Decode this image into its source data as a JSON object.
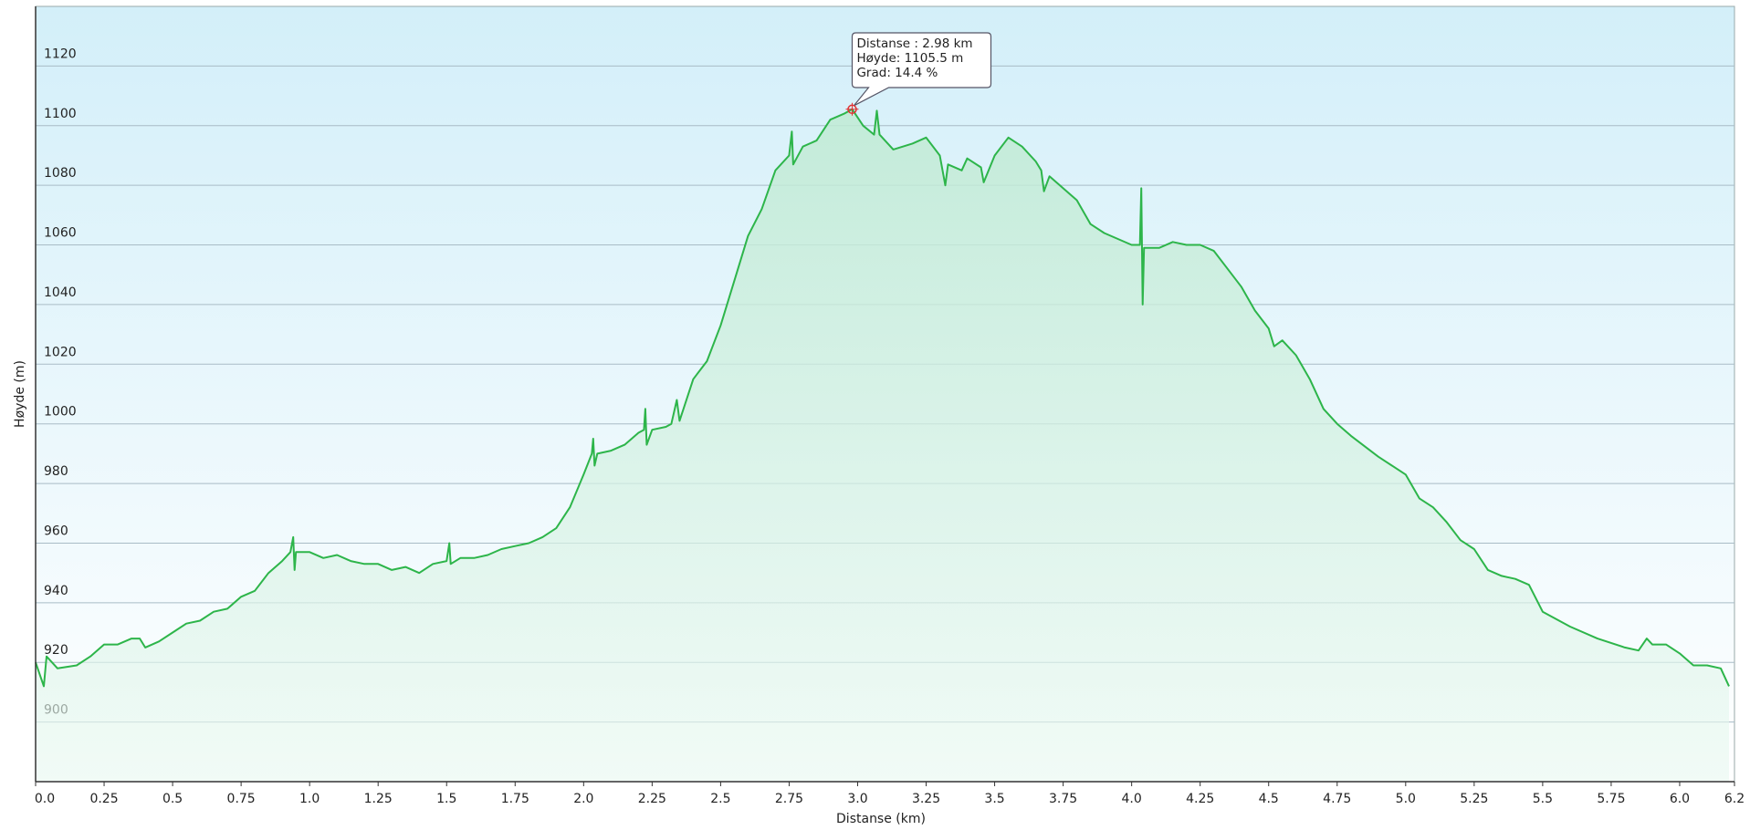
{
  "chart_data": {
    "type": "line",
    "ylabel": "Høyde (m)",
    "xlabel": "Distanse  (km)",
    "xlim": [
      0,
      6.2
    ],
    "ylim": [
      880,
      1140
    ],
    "xticks": [
      {
        "value": 0,
        "label": "0.0"
      },
      0.25,
      0.5,
      0.75,
      {
        "value": 1,
        "label": "1.0"
      },
      1.25,
      1.5,
      1.75,
      {
        "value": 2,
        "label": "2.0"
      },
      2.25,
      2.5,
      2.75,
      {
        "value": 3,
        "label": "3.0"
      },
      3.25,
      3.5,
      3.75,
      {
        "value": 4,
        "label": "4.0"
      },
      4.25,
      4.5,
      4.75,
      {
        "value": 5,
        "label": "5.0"
      },
      5.25,
      5.5,
      5.75,
      {
        "value": 6,
        "label": "6.0"
      },
      6.2
    ],
    "yticks": [
      900,
      920,
      940,
      960,
      980,
      1000,
      1020,
      1040,
      1060,
      1080,
      1100,
      1120
    ],
    "grid": true,
    "series": [
      {
        "color": "#2db54a",
        "x": [
          0.0,
          0.03,
          0.04,
          0.08,
          0.15,
          0.2,
          0.25,
          0.3,
          0.35,
          0.38,
          0.4,
          0.45,
          0.5,
          0.55,
          0.6,
          0.65,
          0.7,
          0.75,
          0.8,
          0.85,
          0.9,
          0.93,
          0.94,
          0.945,
          0.95,
          1.0,
          1.05,
          1.1,
          1.15,
          1.2,
          1.25,
          1.3,
          1.35,
          1.4,
          1.45,
          1.5,
          1.51,
          1.515,
          1.55,
          1.6,
          1.65,
          1.7,
          1.75,
          1.8,
          1.85,
          1.9,
          1.95,
          2.0,
          2.03,
          2.035,
          2.04,
          2.05,
          2.1,
          2.15,
          2.2,
          2.22,
          2.225,
          2.23,
          2.25,
          2.3,
          2.32,
          2.34,
          2.35,
          2.4,
          2.45,
          2.5,
          2.55,
          2.6,
          2.65,
          2.7,
          2.75,
          2.76,
          2.765,
          2.8,
          2.85,
          2.9,
          2.95,
          2.98,
          3.02,
          3.06,
          3.07,
          3.08,
          3.13,
          3.2,
          3.25,
          3.3,
          3.32,
          3.33,
          3.38,
          3.4,
          3.45,
          3.46,
          3.5,
          3.55,
          3.6,
          3.65,
          3.67,
          3.68,
          3.7,
          3.75,
          3.8,
          3.85,
          3.9,
          3.95,
          4.0,
          4.03,
          4.035,
          4.04,
          4.045,
          4.1,
          4.15,
          4.2,
          4.25,
          4.3,
          4.35,
          4.4,
          4.45,
          4.5,
          4.52,
          4.55,
          4.6,
          4.65,
          4.7,
          4.75,
          4.8,
          4.9,
          5.0,
          5.05,
          5.1,
          5.15,
          5.2,
          5.25,
          5.3,
          5.35,
          5.4,
          5.45,
          5.5,
          5.6,
          5.7,
          5.8,
          5.85,
          5.88,
          5.9,
          5.95,
          6.0,
          6.05,
          6.1,
          6.15,
          6.18
        ],
        "values": [
          920,
          912,
          922,
          918,
          919,
          922,
          926,
          926,
          928,
          928,
          925,
          927,
          930,
          933,
          934,
          937,
          938,
          942,
          944,
          950,
          954,
          957,
          962,
          951,
          957,
          957,
          955,
          956,
          954,
          953,
          953,
          951,
          952,
          950,
          953,
          954,
          960,
          953,
          955,
          955,
          956,
          958,
          959,
          960,
          962,
          965,
          972,
          983,
          990,
          995,
          986,
          990,
          991,
          993,
          997,
          998,
          1005,
          993,
          998,
          999,
          1000,
          1008,
          1001,
          1015,
          1021,
          1033,
          1048,
          1063,
          1072,
          1085,
          1090,
          1098,
          1087,
          1093,
          1095,
          1102,
          1104,
          1105.5,
          1100,
          1097,
          1105,
          1097,
          1092,
          1094,
          1096,
          1090,
          1080,
          1087,
          1085,
          1089,
          1086,
          1081,
          1090,
          1096,
          1093,
          1088,
          1085,
          1078,
          1083,
          1079,
          1075,
          1067,
          1064,
          1062,
          1060,
          1060,
          1079,
          1040,
          1059,
          1059,
          1061,
          1060,
          1060,
          1058,
          1052,
          1046,
          1038,
          1032,
          1026,
          1028,
          1023,
          1015,
          1005,
          1000,
          996,
          989,
          983,
          975,
          972,
          967,
          961,
          958,
          951,
          949,
          948,
          946,
          937,
          932,
          928,
          925,
          924,
          928,
          926,
          926,
          923,
          919,
          919,
          918,
          912
        ]
      }
    ],
    "annotation": {
      "x": 2.98,
      "y": 1105.5,
      "color": "#e03030",
      "lines": [
        "Distanse : 2.98 km",
        "Høyde: 1105.5 m",
        "Grad: 14.4 %"
      ]
    }
  }
}
